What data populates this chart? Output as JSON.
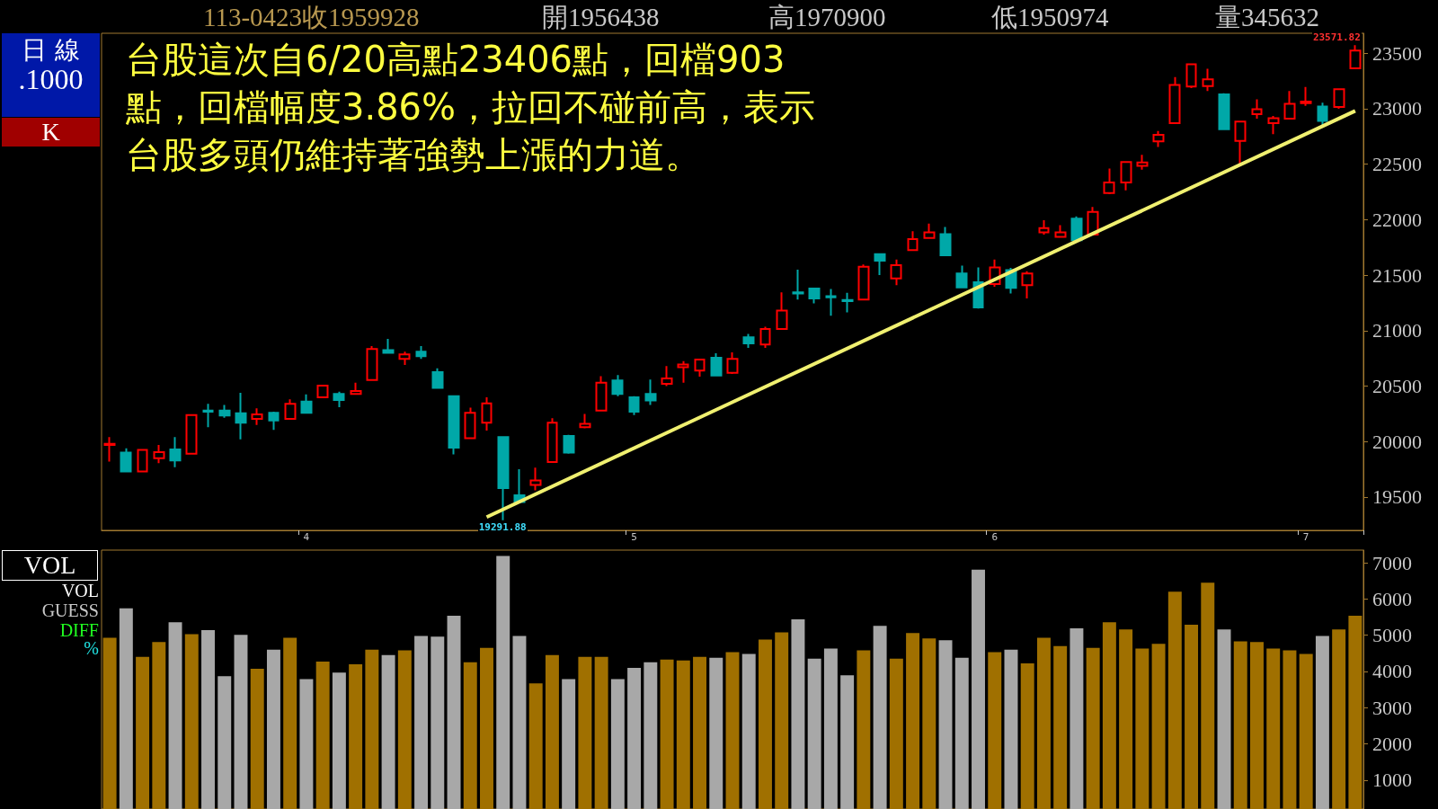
{
  "chart_data": [
    {
      "type": "candlestick",
      "categories": [
        null,
        null,
        null,
        null,
        null,
        null,
        null,
        null,
        null,
        null,
        null,
        null,
        "4",
        null,
        null,
        null,
        null,
        null,
        null,
        null,
        null,
        null,
        null,
        null,
        null,
        null,
        null,
        null,
        null,
        null,
        null,
        null,
        "5",
        null,
        null,
        null,
        null,
        null,
        null,
        null,
        null,
        null,
        null,
        null,
        null,
        null,
        null,
        null,
        null,
        null,
        null,
        null,
        null,
        null,
        "6",
        null,
        null,
        null,
        null,
        null,
        null,
        null,
        null,
        null,
        null,
        null,
        null,
        null,
        null,
        null,
        null,
        null,
        null,
        "7",
        null,
        null,
        null
      ],
      "series": [
        {
          "type": "candlestick",
          "ohlc": [
            [
              19970,
              20040,
              19820,
              19980
            ],
            [
              19900,
              19940,
              19730,
              19730
            ],
            [
              19730,
              19930,
              19725,
              19925
            ],
            [
              19850,
              19970,
              19805,
              19905
            ],
            [
              19930,
              20040,
              19770,
              19830
            ],
            [
              19890,
              20240,
              19890,
              20240
            ],
            [
              20280,
              20340,
              20130,
              20270
            ],
            [
              20280,
              20330,
              20215,
              20235
            ],
            [
              20255,
              20440,
              20020,
              20170
            ],
            [
              20205,
              20300,
              20150,
              20245
            ],
            [
              20260,
              20270,
              20105,
              20190
            ],
            [
              20205,
              20380,
              20205,
              20340
            ],
            [
              20360,
              20425,
              20255,
              20260
            ],
            [
              20400,
              20505,
              20400,
              20505
            ],
            [
              20430,
              20450,
              20310,
              20375
            ],
            [
              20430,
              20530,
              20425,
              20455
            ],
            [
              20555,
              20860,
              20555,
              20835
            ],
            [
              20825,
              20925,
              20800,
              20800
            ],
            [
              20745,
              20810,
              20690,
              20785
            ],
            [
              20810,
              20860,
              20745,
              20770
            ],
            [
              20625,
              20660,
              20485,
              20485
            ],
            [
              20410,
              20410,
              19885,
              19945
            ],
            [
              20030,
              20305,
              20030,
              20260
            ],
            [
              20170,
              20400,
              20100,
              20345
            ],
            [
              20040,
              20040,
              19291.88,
              19580
            ],
            [
              19515,
              19750,
              19455,
              19455
            ],
            [
              19610,
              19765,
              19560,
              19650
            ],
            [
              19815,
              20210,
              19815,
              20170
            ],
            [
              20050,
              20060,
              19890,
              19900
            ],
            [
              20130,
              20250,
              20120,
              20160
            ],
            [
              20280,
              20590,
              20280,
              20530
            ],
            [
              20550,
              20600,
              20410,
              20430
            ],
            [
              20400,
              20410,
              20240,
              20270
            ],
            [
              20430,
              20560,
              20330,
              20370
            ],
            [
              20520,
              20680,
              20500,
              20570
            ],
            [
              20670,
              20725,
              20530,
              20695
            ],
            [
              20640,
              20740,
              20585,
              20740
            ],
            [
              20755,
              20795,
              20595,
              20595
            ],
            [
              20620,
              20805,
              20610,
              20745
            ],
            [
              20940,
              20970,
              20845,
              20885
            ],
            [
              20875,
              21035,
              20845,
              21015
            ],
            [
              21015,
              21345,
              21015,
              21180
            ],
            [
              21345,
              21550,
              21280,
              21335
            ],
            [
              21380,
              21380,
              21245,
              21290
            ],
            [
              21310,
              21375,
              21135,
              21300
            ],
            [
              21275,
              21340,
              21165,
              21265
            ],
            [
              21280,
              21595,
              21280,
              21575
            ],
            [
              21690,
              21690,
              21500,
              21630
            ],
            [
              21470,
              21640,
              21410,
              21590
            ],
            [
              21725,
              21895,
              21725,
              21825
            ],
            [
              21835,
              21965,
              21835,
              21885
            ],
            [
              21870,
              21935,
              21680,
              21680
            ],
            [
              21515,
              21585,
              21390,
              21390
            ],
            [
              21435,
              21570,
              21200,
              21210
            ],
            [
              21420,
              21640,
              21395,
              21570
            ],
            [
              21545,
              21565,
              21335,
              21385
            ],
            [
              21410,
              21535,
              21290,
              21515
            ],
            [
              21885,
              21995,
              21865,
              21925
            ],
            [
              21845,
              21950,
              21845,
              21885
            ],
            [
              22010,
              22030,
              21815,
              21815
            ],
            [
              21865,
              22115,
              21865,
              22070
            ],
            [
              22240,
              22460,
              22230,
              22335
            ],
            [
              22335,
              22520,
              22265,
              22520
            ],
            [
              22485,
              22585,
              22450,
              22515
            ],
            [
              22705,
              22800,
              22655,
              22765
            ],
            [
              22870,
              23285,
              22870,
              23215
            ],
            [
              23200,
              23406,
              23185,
              23400
            ],
            [
              23205,
              23360,
              23160,
              23265
            ],
            [
              23130,
              23140,
              22815,
              22815
            ],
            [
              22710,
              22885,
              22503,
              22885
            ],
            [
              22950,
              23085,
              22910,
              22995
            ],
            [
              22870,
              22935,
              22770,
              22915
            ],
            [
              22910,
              23160,
              22910,
              23045
            ],
            [
              23050,
              23195,
              23025,
              23065
            ],
            [
              23020,
              23055,
              22850,
              22890
            ],
            [
              23015,
              23175,
              23000,
              23175
            ],
            [
              23365,
              23571.82,
              23365,
              23525
            ]
          ],
          "colors": [
            "#ff0000",
            "#00a8a8",
            "#ff0000",
            "#ff0000",
            "#00a8a8",
            "#ff0000",
            "#00a8a8",
            "#00a8a8",
            "#00a8a8",
            "#ff0000",
            "#00a8a8",
            "#ff0000",
            "#00a8a8",
            "#ff0000",
            "#00a8a8",
            "#ff0000",
            "#ff0000",
            "#00a8a8",
            "#ff0000",
            "#00a8a8",
            "#00a8a8",
            "#00a8a8",
            "#ff0000",
            "#ff0000",
            "#00a8a8",
            "#00a8a8",
            "#ff0000",
            "#ff0000",
            "#00a8a8",
            "#ff0000",
            "#ff0000",
            "#00a8a8",
            "#00a8a8",
            "#00a8a8",
            "#ff0000",
            "#ff0000",
            "#ff0000",
            "#00a8a8",
            "#ff0000",
            "#00a8a8",
            "#ff0000",
            "#ff0000",
            "#00a8a8",
            "#00a8a8",
            "#00a8a8",
            "#00a8a8",
            "#ff0000",
            "#00a8a8",
            "#ff0000",
            "#ff0000",
            "#ff0000",
            "#00a8a8",
            "#00a8a8",
            "#00a8a8",
            "#ff0000",
            "#00a8a8",
            "#ff0000",
            "#ff0000",
            "#ff0000",
            "#00a8a8",
            "#ff0000",
            "#ff0000",
            "#ff0000",
            "#ff0000",
            "#ff0000",
            "#ff0000",
            "#ff0000",
            "#ff0000",
            "#00a8a8",
            "#ff0000",
            "#ff0000",
            "#ff0000",
            "#ff0000",
            "#ff0000",
            "#00a8a8",
            "#ff0000",
            "#ff0000"
          ]
        },
        {
          "type": "line",
          "color": "#f0f070",
          "values": [
            null,
            null,
            null,
            null,
            null,
            null,
            null,
            null,
            null,
            null,
            null,
            null,
            null,
            null,
            null,
            null,
            null,
            null,
            null,
            null,
            null,
            null,
            null,
            19320,
            null,
            null,
            null,
            null,
            null,
            null,
            null,
            null,
            null,
            null,
            null,
            null,
            null,
            null,
            null,
            null,
            null,
            null,
            null,
            null,
            null,
            null,
            null,
            null,
            null,
            null,
            null,
            null,
            null,
            null,
            null,
            null,
            null,
            null,
            null,
            null,
            null,
            null,
            null,
            null,
            null,
            null,
            null,
            null,
            null,
            null,
            null,
            null,
            null,
            null,
            null,
            null,
            22980
          ]
        }
      ],
      "ylim": [
        19200,
        23680
      ],
      "yticks": [
        19500,
        20000,
        20500,
        21000,
        21500,
        22000,
        22500,
        23000,
        23500
      ],
      "annotations": [
        "113-0423收1959928",
        "開1956438",
        "高1970900",
        "低1950974",
        "量345632",
        "日 線",
        ".1000",
        "K",
        "台股這次自6/20高點23406點，回檔903點，回檔幅度3.86%，拉回不碰前高，表示台股多頭仍維持著強勢上漲的力道。",
        "23571.82",
        "19291.88"
      ]
    },
    {
      "type": "bar",
      "categories": [
        null,
        null,
        null,
        null,
        null,
        null,
        null,
        null,
        null,
        null,
        null,
        null,
        null,
        null,
        null,
        null,
        null,
        null,
        null,
        null,
        null,
        null,
        null,
        null,
        null,
        null,
        null,
        null,
        null,
        null,
        null,
        null,
        null,
        null,
        null,
        null,
        null,
        null,
        null,
        null,
        null,
        null,
        null,
        null,
        null,
        null,
        null,
        null,
        null,
        null,
        null,
        null,
        null,
        null,
        null,
        null,
        null,
        null,
        null,
        null,
        null,
        null,
        null,
        null,
        null,
        null,
        null,
        null,
        null,
        null,
        null,
        null,
        null,
        null,
        null,
        null,
        null
      ],
      "values": [
        4930,
        5740,
        4400,
        4810,
        5360,
        5030,
        5140,
        3870,
        5010,
        4070,
        4600,
        4930,
        3790,
        4270,
        3970,
        4200,
        4600,
        4450,
        4580,
        4980,
        4960,
        5540,
        4250,
        4650,
        7190,
        4980,
        3670,
        4450,
        3790,
        4400,
        4400,
        3790,
        4100,
        4250,
        4330,
        4300,
        4400,
        4380,
        4530,
        4480,
        4880,
        5080,
        5440,
        4350,
        4630,
        3890,
        4580,
        5260,
        4350,
        5060,
        4910,
        4860,
        4380,
        6810,
        4530,
        4600,
        4220,
        4930,
        4700,
        5190,
        4650,
        5360,
        5160,
        4630,
        4760,
        6200,
        5290,
        6450,
        5160,
        4830,
        4810,
        4630,
        4580,
        4480,
        4980,
        5160,
        5540
      ],
      "colors": [
        "#a07000",
        "#a8a8a8",
        "#a07000",
        "#a07000",
        "#a8a8a8",
        "#a07000",
        "#a8a8a8",
        "#a8a8a8",
        "#a8a8a8",
        "#a07000",
        "#a8a8a8",
        "#a07000",
        "#a8a8a8",
        "#a07000",
        "#a8a8a8",
        "#a07000",
        "#a07000",
        "#a8a8a8",
        "#a07000",
        "#a8a8a8",
        "#a8a8a8",
        "#a8a8a8",
        "#a07000",
        "#a07000",
        "#a8a8a8",
        "#a8a8a8",
        "#a07000",
        "#a07000",
        "#a8a8a8",
        "#a07000",
        "#a07000",
        "#a8a8a8",
        "#a8a8a8",
        "#a8a8a8",
        "#a07000",
        "#a07000",
        "#a07000",
        "#a8a8a8",
        "#a07000",
        "#a8a8a8",
        "#a07000",
        "#a07000",
        "#a8a8a8",
        "#a8a8a8",
        "#a8a8a8",
        "#a8a8a8",
        "#a07000",
        "#a8a8a8",
        "#a07000",
        "#a07000",
        "#a07000",
        "#a8a8a8",
        "#a8a8a8",
        "#a8a8a8",
        "#a07000",
        "#a8a8a8",
        "#a07000",
        "#a07000",
        "#a07000",
        "#a8a8a8",
        "#a07000",
        "#a07000",
        "#a07000",
        "#a07000",
        "#a07000",
        "#a07000",
        "#a07000",
        "#a07000",
        "#a8a8a8",
        "#a07000",
        "#a07000",
        "#a07000",
        "#a07000",
        "#a07000",
        "#a8a8a8",
        "#a07000",
        "#a07000"
      ],
      "ylim": [
        200,
        7350
      ],
      "yticks": [
        1000,
        2000,
        3000,
        4000,
        5000,
        6000,
        7000
      ],
      "tick_labels": "y",
      "annotations": [
        "VOL",
        "VOL",
        "GUESS",
        "DIFF",
        "%"
      ]
    }
  ]
}
